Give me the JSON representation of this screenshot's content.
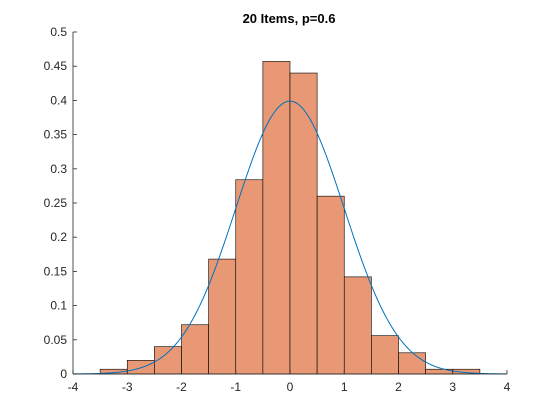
{
  "chart_data": {
    "type": "bar",
    "title": "20 Items, p=0.6",
    "xlabel": "",
    "ylabel": "",
    "xlim": [
      -4,
      4
    ],
    "ylim": [
      0,
      0.5
    ],
    "xticks": [
      "-4",
      "-3",
      "-2",
      "-1",
      "0",
      "1",
      "2",
      "3",
      "4"
    ],
    "xtick_values": [
      -4,
      -3,
      -2,
      -1,
      0,
      1,
      2,
      3,
      4
    ],
    "yticks": [
      "0",
      "0.05",
      "0.1",
      "0.15",
      "0.2",
      "0.25",
      "0.3",
      "0.35",
      "0.4",
      "0.45",
      "0.5"
    ],
    "ytick_values": [
      0,
      0.05,
      0.1,
      0.15,
      0.2,
      0.25,
      0.3,
      0.35,
      0.4,
      0.45,
      0.5
    ],
    "grid": false,
    "histogram": {
      "bin_edges": [
        -3.5,
        -3.0,
        -2.5,
        -2.0,
        -1.5,
        -1.0,
        -0.5,
        0.0,
        0.5,
        1.0,
        1.5,
        2.0,
        2.5,
        3.0,
        3.5
      ],
      "values": [
        0.007,
        0.02,
        0.04,
        0.072,
        0.168,
        0.284,
        0.457,
        0.44,
        0.26,
        0.142,
        0.056,
        0.031,
        0.007,
        0.007
      ],
      "color": "#e99875",
      "edge_color": "#000000"
    },
    "curve": {
      "kind": "standard normal pdf",
      "x_range": [
        -4,
        4
      ],
      "color": "#0072bd"
    },
    "axis_color": "#262626"
  }
}
